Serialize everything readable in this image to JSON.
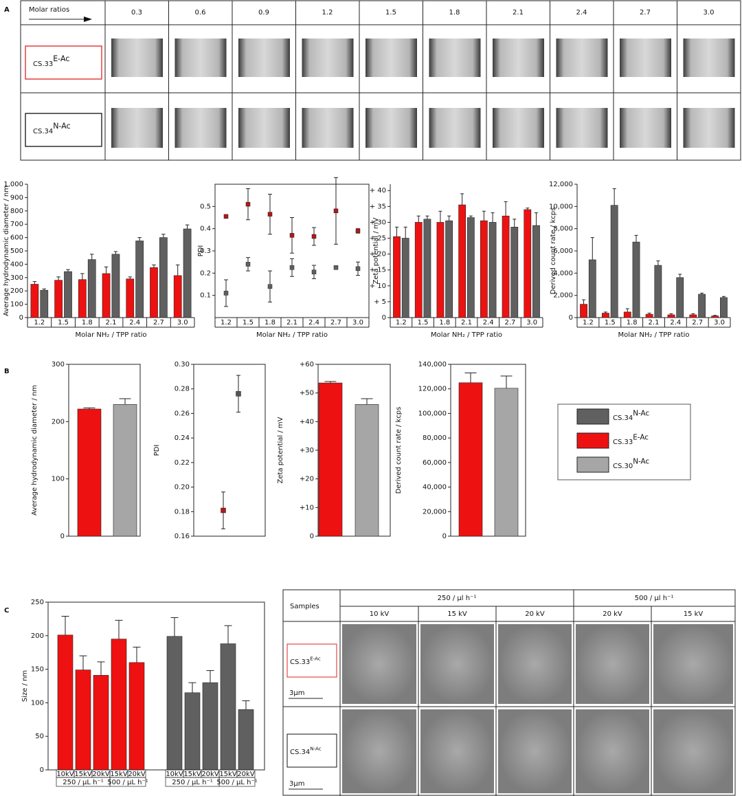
{
  "panel_labels": [
    "A",
    "B",
    "C"
  ],
  "table_a": {
    "header": "Molar ratios",
    "ratios": [
      "0.3",
      "0.6",
      "0.9",
      "1.2",
      "1.5",
      "1.8",
      "2.1",
      "2.4",
      "2.7",
      "3.0"
    ],
    "rows": [
      {
        "name": "CS.33",
        "sup": "E-Ac"
      },
      {
        "name": "CS.34",
        "sup": "N-Ac"
      }
    ]
  },
  "chart_data": [
    {
      "type": "bar",
      "ylabel": "Average hydrodynamic diameter / nm",
      "xlabel": "Molar NH₂ / TPP ratio",
      "categories": [
        "1.2",
        "1.5",
        "1.8",
        "2.1",
        "2.4",
        "2.7",
        "3.0"
      ],
      "series": [
        {
          "color": "#ee1111",
          "values": [
            250,
            280,
            285,
            330,
            290,
            375,
            315
          ],
          "errors": [
            20,
            25,
            45,
            50,
            15,
            20,
            80
          ]
        },
        {
          "color": "#606060",
          "values": [
            205,
            345,
            435,
            475,
            575,
            600,
            665
          ],
          "errors": [
            10,
            15,
            40,
            20,
            25,
            25,
            30
          ]
        }
      ],
      "ylim": [
        0,
        1000
      ],
      "yticks": [
        0,
        100,
        200,
        300,
        400,
        500,
        600,
        700,
        800,
        900,
        {
          "value": 1000,
          "label": "1,000"
        }
      ]
    },
    {
      "type": "scatter",
      "ylabel": "PDI",
      "xlabel": "Molar NH₂ / TPP ratio",
      "categories": [
        "1.2",
        "1.5",
        "1.8",
        "2.1",
        "2.4",
        "2.7",
        "3.0"
      ],
      "series": [
        {
          "color": "#b01818",
          "values": [
            0.455,
            0.51,
            0.465,
            0.37,
            0.365,
            0.48,
            0.39
          ],
          "errors": [
            0,
            0.07,
            0.09,
            0.08,
            0.04,
            0.15,
            0.01
          ]
        },
        {
          "color": "#606060",
          "values": [
            0.11,
            0.24,
            0.14,
            0.225,
            0.205,
            0.225,
            0.22
          ],
          "errors": [
            0.06,
            0.03,
            0.07,
            0.04,
            0.03,
            0,
            0.03
          ]
        }
      ],
      "ylim": [
        0,
        0.6
      ],
      "yticks": [
        0.1,
        0.2,
        0.3,
        0.4,
        0.5
      ]
    },
    {
      "type": "bar",
      "ylabel": "Zeta potential / mV",
      "xlabel": "Molar NH₂ / TPP ratio",
      "categories": [
        "1.2",
        "1.5",
        "1.8",
        "2.1",
        "2.4",
        "2.7",
        "3.0"
      ],
      "series": [
        {
          "color": "#ee1111",
          "values": [
            25.5,
            30,
            30,
            35.5,
            30.5,
            32,
            34
          ],
          "errors": [
            3,
            2,
            3.5,
            3.5,
            3,
            4.5,
            0.5
          ]
        },
        {
          "color": "#606060",
          "values": [
            25,
            31,
            30.5,
            31.5,
            30,
            28.5,
            29
          ],
          "errors": [
            3.5,
            1,
            1.5,
            0.5,
            3,
            2.5,
            4
          ]
        }
      ],
      "ylim": [
        0,
        42
      ],
      "yticks": [
        0,
        {
          "value": 5,
          "label": "+ 5"
        },
        {
          "value": 10,
          "label": "+ 10"
        },
        {
          "value": 15,
          "label": "+ 15"
        },
        {
          "value": 20,
          "label": "+ 20"
        },
        {
          "value": 25,
          "label": "+ 25"
        },
        {
          "value": 30,
          "label": "+ 30"
        },
        {
          "value": 35,
          "label": "+ 35"
        },
        {
          "value": 40,
          "label": "+ 40"
        }
      ]
    },
    {
      "type": "bar",
      "ylabel": "Derived count rate / kcps",
      "xlabel": "Molar NH₂ / TPP ratio",
      "categories": [
        "1.2",
        "1.5",
        "1.8",
        "2.1",
        "2.4",
        "2.7",
        "3.0"
      ],
      "series": [
        {
          "color": "#ee1111",
          "values": [
            1200,
            400,
            500,
            300,
            250,
            250,
            150
          ],
          "errors": [
            400,
            100,
            300,
            100,
            100,
            100,
            50
          ]
        },
        {
          "color": "#606060",
          "values": [
            5200,
            10100,
            6800,
            4700,
            3600,
            2100,
            1800
          ],
          "errors": [
            2000,
            1500,
            600,
            400,
            300,
            100,
            100
          ]
        }
      ],
      "ylim": [
        0,
        12000
      ],
      "yticks": [
        0,
        {
          "value": 2000,
          "label": "2,000"
        },
        {
          "value": 4000,
          "label": "4,000"
        },
        {
          "value": 6000,
          "label": "6,000"
        },
        {
          "value": 8000,
          "label": "8,000"
        },
        {
          "value": 10000,
          "label": "10,000"
        },
        {
          "value": 12000,
          "label": "12,000"
        }
      ]
    },
    {
      "type": "bar",
      "ylabel": "Average hydrodynamic diameter / nm",
      "series": [
        {
          "color": "#ee1111",
          "values": [
            222
          ],
          "errors": [
            2
          ]
        },
        {
          "color": "#a6a6a6",
          "values": [
            230
          ],
          "errors": [
            10
          ]
        }
      ],
      "ylim": [
        0,
        300
      ],
      "yticks": [
        0,
        100,
        200,
        300
      ]
    },
    {
      "type": "scatter",
      "ylabel": "PDI",
      "series": [
        {
          "color": "#b01818",
          "values": [
            0.181
          ],
          "errors": [
            0.015
          ]
        },
        {
          "color": "#555555",
          "values": [
            0.276
          ],
          "errors": [
            0.015
          ]
        }
      ],
      "ylim": [
        0.16,
        0.3
      ],
      "yticks": [
        0.16,
        0.18,
        {
          "value": 0.2,
          "label": "0.20"
        },
        0.22,
        0.24,
        0.26,
        0.28,
        {
          "value": 0.3,
          "label": "0.30"
        }
      ]
    },
    {
      "type": "bar",
      "ylabel": "Zeta potential / mV",
      "series": [
        {
          "color": "#ee1111",
          "values": [
            53.5
          ],
          "errors": [
            0.5
          ]
        },
        {
          "color": "#a6a6a6",
          "values": [
            46
          ],
          "errors": [
            2
          ]
        }
      ],
      "ylim": [
        0,
        60
      ],
      "yticks": [
        0,
        {
          "value": 10,
          "label": "+10"
        },
        {
          "value": 20,
          "label": "+20"
        },
        {
          "value": 30,
          "label": "+30"
        },
        {
          "value": 40,
          "label": "+40"
        },
        {
          "value": 50,
          "label": "+50"
        },
        {
          "value": 60,
          "label": "+60"
        }
      ]
    },
    {
      "type": "bar",
      "ylabel": "Derived count rate / kcps",
      "series": [
        {
          "color": "#ee1111",
          "values": [
            125000
          ],
          "errors": [
            8000
          ]
        },
        {
          "color": "#a6a6a6",
          "values": [
            120500
          ],
          "errors": [
            10000
          ]
        }
      ],
      "ylim": [
        0,
        140000
      ],
      "yticks": [
        0,
        {
          "value": 20000,
          "label": "20,000"
        },
        {
          "value": 40000,
          "label": "40,000"
        },
        {
          "value": 60000,
          "label": "60,000"
        },
        {
          "value": 80000,
          "label": "80,000"
        },
        {
          "value": 100000,
          "label": "100,000"
        },
        {
          "value": 120000,
          "label": "120,000"
        },
        {
          "value": 140000,
          "label": "140,000"
        }
      ]
    },
    {
      "type": "bar",
      "ylabel": "Size / nm",
      "groups": [
        "250 / µL h⁻¹",
        "500 / µL h⁻¹"
      ],
      "series": [
        {
          "color": "#ee1111",
          "categories": [
            "10kV",
            "15kV",
            "20kV",
            "15kV",
            "20kV"
          ],
          "values": [
            201,
            149,
            141,
            195,
            160
          ],
          "errors": [
            28,
            21,
            20,
            28,
            23
          ]
        },
        {
          "color": "#606060",
          "categories": [
            "10kV",
            "15kV",
            "20kV",
            "15kV",
            "20kV"
          ],
          "values": [
            199,
            115,
            130,
            188,
            90
          ],
          "errors": [
            28,
            15,
            18,
            27,
            13
          ]
        }
      ],
      "ylim": [
        0,
        250
      ],
      "yticks": [
        0,
        50,
        100,
        150,
        200,
        250
      ]
    }
  ],
  "legend": [
    {
      "name": "CS.34",
      "sup": "N-Ac",
      "color": "#606060"
    },
    {
      "name": "CS.33",
      "sup": "E-Ac",
      "color": "#ee1111"
    },
    {
      "name": "CS.30",
      "sup": "N-Ac",
      "color": "#a6a6a6"
    }
  ],
  "table_c": {
    "header": "Samples",
    "groups": [
      "250 / µl h⁻¹",
      "500 / µl h⁻¹"
    ],
    "columns": [
      "10 kV",
      "15 kV",
      "20 kV",
      "20 kV",
      "15 kV"
    ],
    "rows": [
      {
        "name": "CS.33",
        "sup": "E-Ac"
      },
      {
        "name": "CS.34",
        "sup": "N-Ac"
      }
    ],
    "scale_bar": "3µm"
  }
}
